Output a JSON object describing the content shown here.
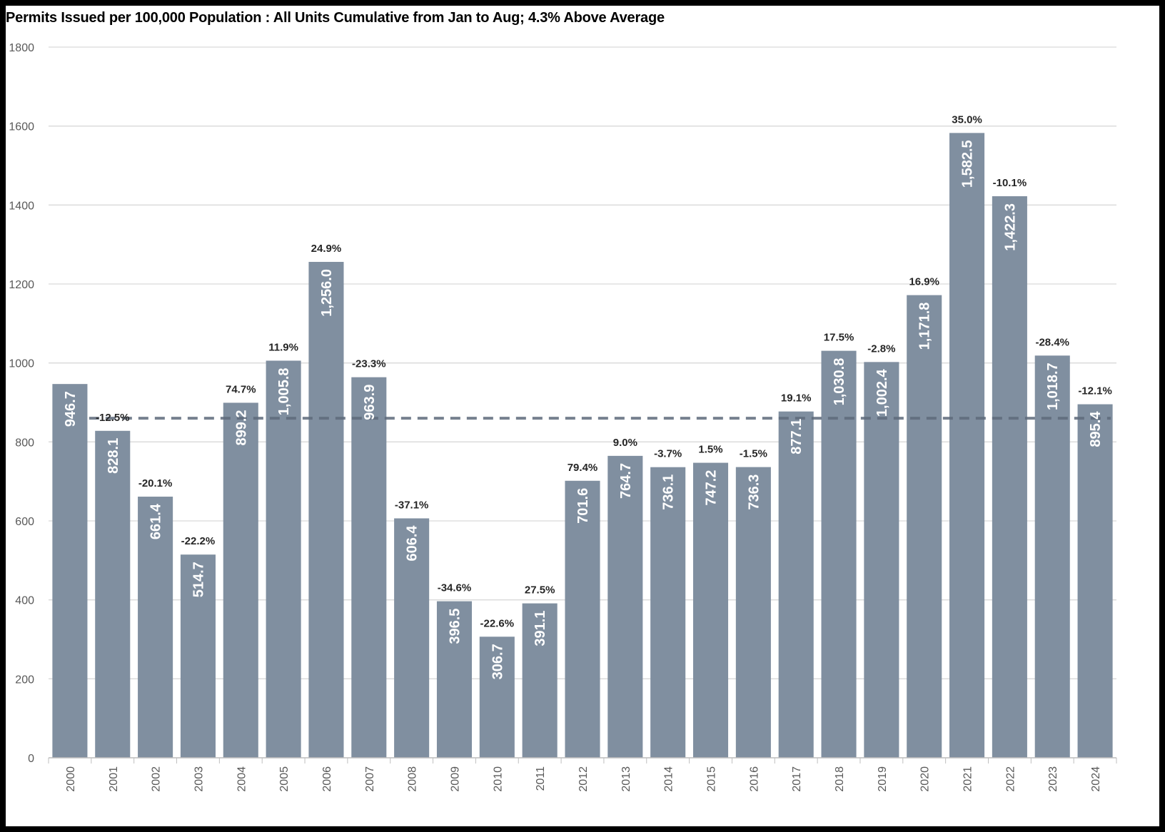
{
  "title": "Permits Issued per 100,000 Population : All Units Cumulative from Jan to Aug; 4.3% Above Average",
  "colors": {
    "bar": "#808fa0",
    "grid": "#d9d9d9",
    "average_line": "#5f6b7c"
  },
  "chart_data": {
    "type": "bar",
    "title": "Permits Issued per 100,000 Population : All Units Cumulative from Jan to Aug; 4.3% Above Average",
    "xlabel": "",
    "ylabel": "",
    "ylim": [
      0,
      1800
    ],
    "yticks": [
      0,
      200,
      400,
      600,
      800,
      1000,
      1200,
      1400,
      1600,
      1800
    ],
    "grid": true,
    "average": 860,
    "categories": [
      "2000",
      "2001",
      "2002",
      "2003",
      "2004",
      "2005",
      "2006",
      "2007",
      "2008",
      "2009",
      "2010",
      "2011",
      "2012",
      "2013",
      "2014",
      "2015",
      "2016",
      "2017",
      "2018",
      "2019",
      "2020",
      "2021",
      "2022",
      "2023",
      "2024"
    ],
    "values": [
      946.7,
      828.1,
      661.4,
      514.7,
      899.2,
      1005.8,
      1256.0,
      963.9,
      606.4,
      396.5,
      306.7,
      391.1,
      701.6,
      764.7,
      736.1,
      747.2,
      736.3,
      877.1,
      1030.8,
      1002.4,
      1171.8,
      1582.5,
      1422.3,
      1018.7,
      895.4
    ],
    "value_labels": [
      "946.7",
      "828.1",
      "661.4",
      "514.7",
      "899.2",
      "1,005.8",
      "1,256.0",
      "963.9",
      "606.4",
      "396.5",
      "306.7",
      "391.1",
      "701.6",
      "764.7",
      "736.1",
      "747.2",
      "736.3",
      "877.1",
      "1,030.8",
      "1,002.4",
      "1,171.8",
      "1,582.5",
      "1,422.3",
      "1,018.7",
      "895.4"
    ],
    "change_labels": [
      "",
      "-12.5%",
      "-20.1%",
      "-22.2%",
      "74.7%",
      "11.9%",
      "24.9%",
      "-23.3%",
      "-37.1%",
      "-34.6%",
      "-22.6%",
      "27.5%",
      "79.4%",
      "9.0%",
      "-3.7%",
      "1.5%",
      "-1.5%",
      "19.1%",
      "17.5%",
      "-2.8%",
      "16.9%",
      "35.0%",
      "-10.1%",
      "-28.4%",
      "-12.1%"
    ]
  }
}
